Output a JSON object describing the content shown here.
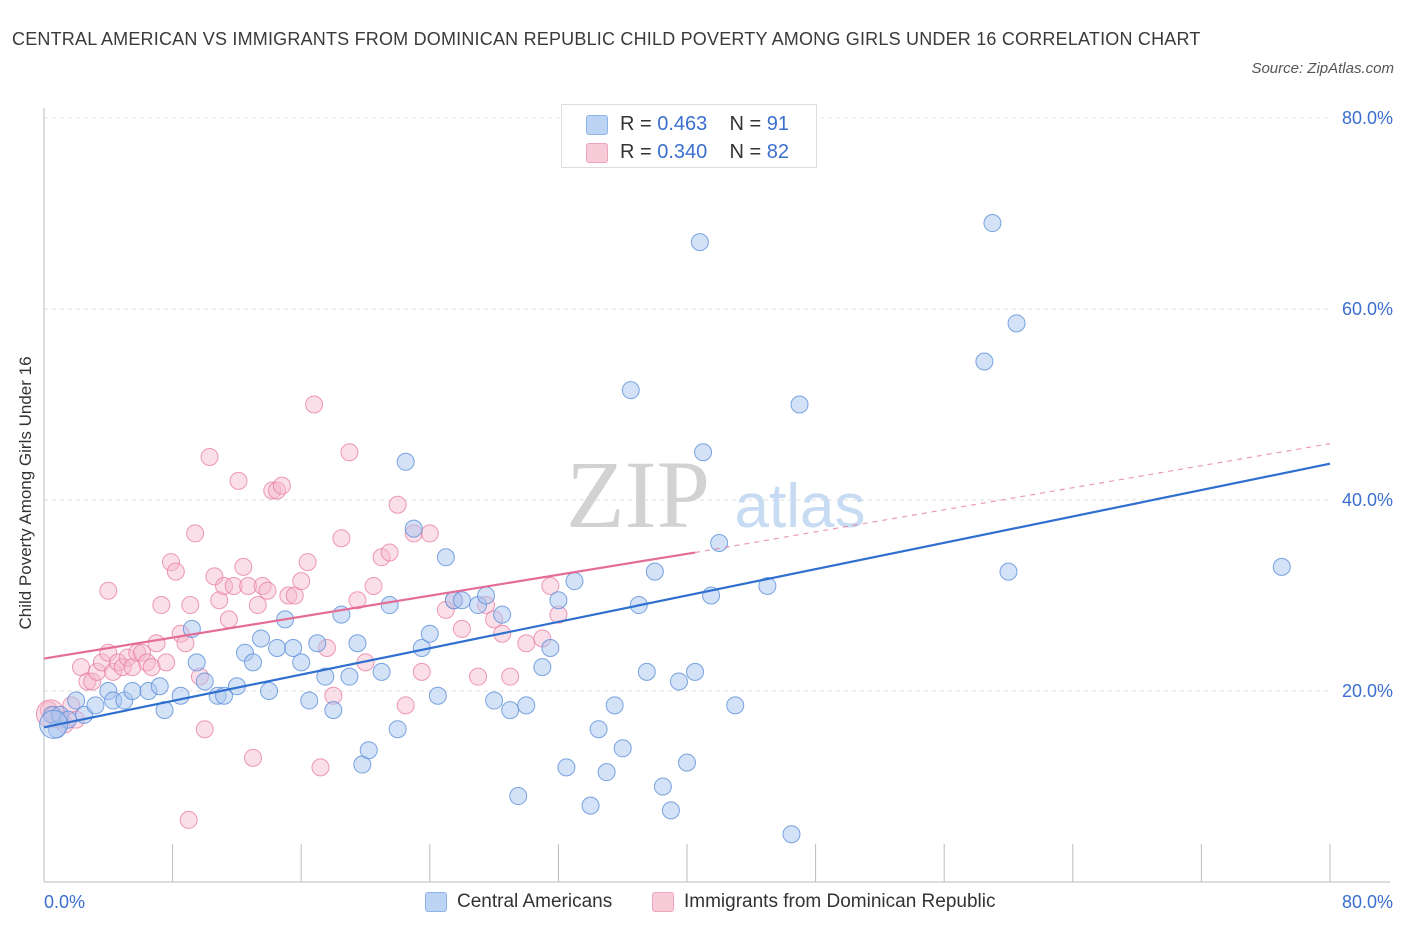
{
  "title": "CENTRAL AMERICAN VS IMMIGRANTS FROM DOMINICAN REPUBLIC CHILD POVERTY AMONG GIRLS UNDER 16 CORRELATION CHART",
  "source": "Source: ZipAtlas.com",
  "watermark": {
    "zip": "ZIP",
    "atlas": "atlas"
  },
  "legend": {
    "rows": [
      {
        "r_label": "R =",
        "r_value": "0.463",
        "n_label": "N =",
        "n_value": "91",
        "color": "#a9c6f0"
      },
      {
        "r_label": "R =",
        "r_value": "0.340",
        "n_label": "N =",
        "n_value": "82",
        "color": "#f4b8cb"
      }
    ]
  },
  "bottom_legend": {
    "series1": "Central Americans",
    "series2": "Immigrants from Dominican Republic"
  },
  "chart_data": {
    "type": "scatter",
    "title": "CENTRAL AMERICAN VS IMMIGRANTS FROM DOMINICAN REPUBLIC CHILD POVERTY AMONG GIRLS UNDER 16 CORRELATION CHART",
    "xlabel": "",
    "ylabel": "Child Poverty Among Girls Under 16",
    "xlim": [
      0,
      80
    ],
    "ylim": [
      0,
      80
    ],
    "x_tick_labels": [
      "0.0%",
      "80.0%"
    ],
    "y_tick_labels": [
      "20.0%",
      "40.0%",
      "60.0%",
      "80.0%"
    ],
    "y_ticks": [
      20,
      40,
      60,
      80
    ],
    "grid": true,
    "colors": {
      "blue": "#5b8fd9",
      "blue_fill": "#a9c6f0",
      "pink": "#e8799f",
      "pink_fill": "#f4b8cb",
      "blue_line": "#2f6fcf",
      "pink_line": "#e36d96",
      "tick_label": "#3b6fcf"
    },
    "series": [
      {
        "name": "Central Americans",
        "r": 0.463,
        "n": 91,
        "trend": {
          "x0": 0,
          "y0": 16.2,
          "x1": 80,
          "y1": 43.8
        },
        "points": [
          [
            0.5,
            17.5
          ],
          [
            0.8,
            16
          ],
          [
            1,
            17.5
          ],
          [
            1.5,
            17
          ],
          [
            2,
            19
          ],
          [
            2.5,
            17.5
          ],
          [
            3.2,
            18.5
          ],
          [
            4,
            20
          ],
          [
            4.3,
            19
          ],
          [
            5,
            19
          ],
          [
            5.5,
            20
          ],
          [
            6.5,
            20
          ],
          [
            7.5,
            18
          ],
          [
            7.2,
            20.5
          ],
          [
            8.5,
            19.5
          ],
          [
            9.2,
            26.5
          ],
          [
            9.5,
            23
          ],
          [
            10,
            21
          ],
          [
            10.8,
            19.5
          ],
          [
            11.2,
            19.5
          ],
          [
            12,
            20.5
          ],
          [
            12.5,
            24
          ],
          [
            13,
            23
          ],
          [
            13.5,
            25.5
          ],
          [
            14,
            20
          ],
          [
            14.5,
            24.5
          ],
          [
            15,
            27.5
          ],
          [
            15.5,
            24.5
          ],
          [
            16,
            23
          ],
          [
            16.5,
            19
          ],
          [
            17,
            25
          ],
          [
            17.5,
            21.5
          ],
          [
            18,
            18
          ],
          [
            18.5,
            28
          ],
          [
            19,
            21.5
          ],
          [
            19.5,
            25
          ],
          [
            19.8,
            12.3
          ],
          [
            20.2,
            13.8
          ],
          [
            21,
            22
          ],
          [
            21.5,
            29
          ],
          [
            22,
            16
          ],
          [
            22.5,
            44
          ],
          [
            23,
            37
          ],
          [
            23.5,
            24.5
          ],
          [
            24,
            26
          ],
          [
            24.5,
            19.5
          ],
          [
            25,
            34
          ],
          [
            25.5,
            29.5
          ],
          [
            26,
            29.5
          ],
          [
            27,
            29
          ],
          [
            27.5,
            30
          ],
          [
            28,
            19
          ],
          [
            28.5,
            28
          ],
          [
            29,
            18
          ],
          [
            29.5,
            9
          ],
          [
            30,
            18.5
          ],
          [
            31,
            22.5
          ],
          [
            31.5,
            24.5
          ],
          [
            32,
            29.5
          ],
          [
            32.5,
            12
          ],
          [
            33,
            31.5
          ],
          [
            34,
            8
          ],
          [
            34.5,
            16
          ],
          [
            35,
            11.5
          ],
          [
            35.5,
            18.5
          ],
          [
            36,
            14
          ],
          [
            36.5,
            51.5
          ],
          [
            37,
            29
          ],
          [
            37.5,
            22
          ],
          [
            38,
            32.5
          ],
          [
            38.5,
            10
          ],
          [
            39,
            7.5
          ],
          [
            39.5,
            21
          ],
          [
            40,
            12.5
          ],
          [
            40.5,
            22
          ],
          [
            40.8,
            67
          ],
          [
            41,
            45
          ],
          [
            41.5,
            30
          ],
          [
            42,
            35.5
          ],
          [
            43,
            18.5
          ],
          [
            45,
            31
          ],
          [
            46.5,
            5
          ],
          [
            47,
            50
          ],
          [
            58.5,
            54.5
          ],
          [
            59,
            69
          ],
          [
            60,
            32.5
          ],
          [
            60.5,
            58.5
          ],
          [
            77,
            33
          ]
        ],
        "big_points": [
          [
            0.6,
            16.5
          ]
        ]
      },
      {
        "name": "Immigrants from Dominican Republic",
        "r": 0.34,
        "n": 82,
        "trend": {
          "x0": 0,
          "y0": 23.4,
          "x1": 40.5,
          "y1": 34.5
        },
        "trend_extended": {
          "x0": 40.5,
          "y0": 34.5,
          "x1": 80,
          "y1": 45.9
        },
        "points": [
          [
            0.3,
            18
          ],
          [
            0.6,
            17.5
          ],
          [
            1,
            17
          ],
          [
            1.3,
            16.5
          ],
          [
            1.7,
            18.5
          ],
          [
            2,
            17
          ],
          [
            2.3,
            22.5
          ],
          [
            2.7,
            21
          ],
          [
            3,
            21
          ],
          [
            3.3,
            22
          ],
          [
            3.6,
            23
          ],
          [
            4,
            24
          ],
          [
            4.3,
            22
          ],
          [
            4.6,
            23
          ],
          [
            4.9,
            22.5
          ],
          [
            5.2,
            23.5
          ],
          [
            5.5,
            22.5
          ],
          [
            5.8,
            24
          ],
          [
            6.1,
            24
          ],
          [
            6.4,
            23
          ],
          [
            6.7,
            22.5
          ],
          [
            7,
            25
          ],
          [
            7.3,
            29
          ],
          [
            7.6,
            23
          ],
          [
            7.9,
            33.5
          ],
          [
            8.2,
            32.5
          ],
          [
            8.5,
            26
          ],
          [
            8.8,
            25
          ],
          [
            9.1,
            29
          ],
          [
            9.4,
            36.5
          ],
          [
            9.7,
            21.5
          ],
          [
            10,
            16
          ],
          [
            10.3,
            44.5
          ],
          [
            10.6,
            32
          ],
          [
            10.9,
            29.5
          ],
          [
            11.2,
            31
          ],
          [
            11.5,
            27.5
          ],
          [
            11.8,
            31
          ],
          [
            12.1,
            42
          ],
          [
            12.4,
            33
          ],
          [
            12.7,
            31
          ],
          [
            13,
            13
          ],
          [
            13.3,
            29
          ],
          [
            13.6,
            31
          ],
          [
            13.9,
            30.5
          ],
          [
            14.2,
            41
          ],
          [
            14.5,
            41
          ],
          [
            14.8,
            41.5
          ],
          [
            15.2,
            30
          ],
          [
            15.6,
            30
          ],
          [
            16,
            31.5
          ],
          [
            16.4,
            33.5
          ],
          [
            16.8,
            50
          ],
          [
            17.2,
            12
          ],
          [
            17.6,
            24.5
          ],
          [
            18,
            19.5
          ],
          [
            18.5,
            36
          ],
          [
            19,
            45
          ],
          [
            19.5,
            29.5
          ],
          [
            20,
            23
          ],
          [
            20.5,
            31
          ],
          [
            21,
            34
          ],
          [
            21.5,
            34.5
          ],
          [
            22,
            39.5
          ],
          [
            22.5,
            18.5
          ],
          [
            23,
            36.5
          ],
          [
            23.5,
            22
          ],
          [
            24,
            36.5
          ],
          [
            25,
            28.5
          ],
          [
            25.5,
            29.5
          ],
          [
            26,
            26.5
          ],
          [
            27,
            21.5
          ],
          [
            27.5,
            29
          ],
          [
            28,
            27.5
          ],
          [
            28.5,
            26
          ],
          [
            29,
            21.5
          ],
          [
            30,
            25
          ],
          [
            31,
            25.5
          ],
          [
            31.5,
            31
          ],
          [
            32,
            28
          ],
          [
            9,
            6.5
          ],
          [
            4,
            30.5
          ]
        ],
        "big_points": [
          [
            0.4,
            17.6
          ]
        ]
      }
    ]
  }
}
